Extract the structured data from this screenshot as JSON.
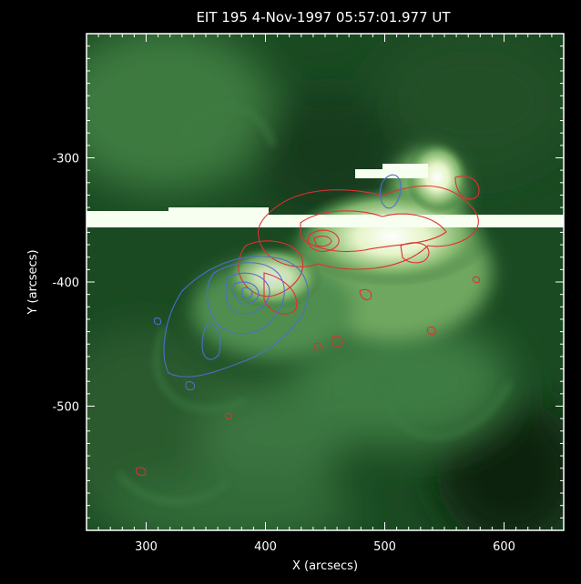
{
  "title": "EIT   195   4-Nov-1997 05:57:01.977 UT",
  "axes": {
    "x": {
      "label": "X (arcsecs)",
      "range": [
        250,
        650
      ],
      "major_ticks": [
        300,
        400,
        500,
        600
      ],
      "tick_labels": [
        "300",
        "400",
        "500",
        "600"
      ]
    },
    "y": {
      "label": "Y (arcsecs)",
      "range": [
        -600,
        -200
      ],
      "major_ticks": [
        -300,
        -400,
        -500
      ],
      "tick_labels": [
        "-300",
        "-400",
        "-500"
      ]
    }
  },
  "colors": {
    "background": "#000000",
    "frame": "#ffffff",
    "image_dark": "#0b1f0d",
    "image_mid": "#3a7a3e",
    "image_bright": "#f4ffe8",
    "contour_red": "#e03030",
    "contour_blue": "#4a6fd0"
  },
  "image": {
    "colormap": "green",
    "saturation_band_y": -352
  }
}
